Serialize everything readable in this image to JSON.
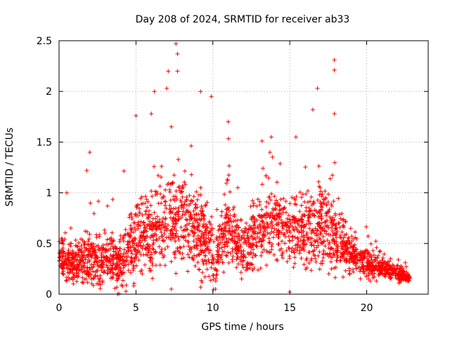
{
  "chart_data": {
    "type": "scatter",
    "title": "Day 208 of 2024, SRMTID for receiver ab33",
    "xlabel": "GPS time / hours",
    "ylabel": "SRMTID / TECUs",
    "xlim": [
      0,
      24
    ],
    "ylim": [
      0,
      2.5
    ],
    "xticks": [
      0,
      5,
      10,
      15,
      20
    ],
    "yticks": [
      0,
      0.5,
      1,
      1.5,
      2,
      2.5
    ],
    "ytick_labels": [
      "0",
      "0.5",
      "1",
      "1.5",
      "2",
      "2.5"
    ],
    "grid": true,
    "marker": "+",
    "series": [
      {
        "name": "SRMTID",
        "color": "#ff0000",
        "envelope": {
          "description": "approximate distribution of points (median value and typical spread per hour)",
          "hours": [
            0,
            1,
            2,
            3,
            4,
            5,
            6,
            7,
            8,
            9,
            10,
            11,
            12,
            13,
            14,
            15,
            16,
            17,
            18,
            19,
            20,
            21,
            22,
            22.8
          ],
          "median": [
            0.35,
            0.3,
            0.35,
            0.35,
            0.3,
            0.55,
            0.6,
            0.7,
            0.75,
            0.65,
            0.35,
            0.65,
            0.45,
            0.6,
            0.75,
            0.6,
            0.6,
            0.65,
            0.55,
            0.4,
            0.3,
            0.25,
            0.2,
            0.15
          ],
          "spread": [
            0.25,
            0.3,
            0.35,
            0.35,
            0.4,
            0.5,
            0.55,
            0.6,
            0.65,
            0.55,
            0.5,
            0.45,
            0.45,
            0.5,
            0.5,
            0.45,
            0.5,
            0.55,
            0.45,
            0.3,
            0.2,
            0.15,
            0.12,
            0.05
          ]
        },
        "outliers": [
          {
            "x": 7.6,
            "y": 2.47
          },
          {
            "x": 7.7,
            "y": 2.37
          },
          {
            "x": 7.1,
            "y": 2.2
          },
          {
            "x": 7.7,
            "y": 2.2
          },
          {
            "x": 17.9,
            "y": 2.31
          },
          {
            "x": 17.9,
            "y": 2.21
          },
          {
            "x": 6.2,
            "y": 2.0
          },
          {
            "x": 7.0,
            "y": 2.03
          },
          {
            "x": 9.2,
            "y": 2.0
          },
          {
            "x": 16.8,
            "y": 2.03
          },
          {
            "x": 5.0,
            "y": 1.76
          },
          {
            "x": 6.0,
            "y": 1.78
          },
          {
            "x": 9.9,
            "y": 1.95
          },
          {
            "x": 16.5,
            "y": 1.82
          },
          {
            "x": 17.9,
            "y": 1.78
          },
          {
            "x": 11.0,
            "y": 1.7
          },
          {
            "x": 15.4,
            "y": 1.55
          },
          {
            "x": 13.8,
            "y": 1.55
          },
          {
            "x": 2.0,
            "y": 1.4
          },
          {
            "x": 1.8,
            "y": 1.22
          },
          {
            "x": 0.5,
            "y": 1.0
          },
          {
            "x": 3.8,
            "y": 0.0
          },
          {
            "x": 7.3,
            "y": 0.05
          },
          {
            "x": 15.0,
            "y": 0.02
          }
        ]
      }
    ]
  }
}
